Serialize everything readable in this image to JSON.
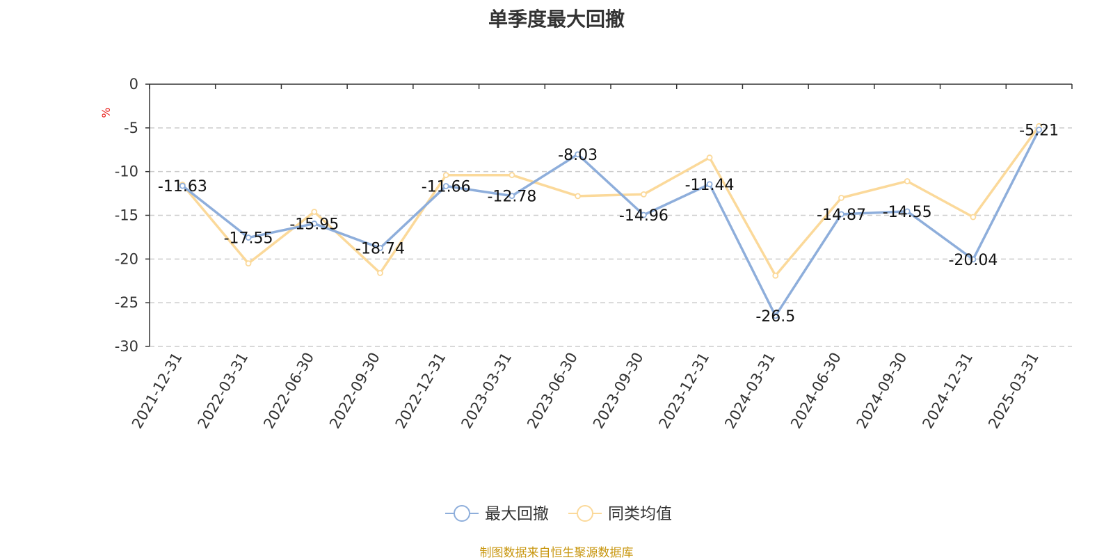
{
  "title": "单季度最大回撤",
  "source": "制图数据来自恒生聚源数据库",
  "chart_data": {
    "type": "line",
    "title": "单季度最大回撤",
    "ylabel": "%",
    "ylim": [
      -30,
      0
    ],
    "yticks": [
      0,
      -5,
      -10,
      -15,
      -20,
      -25,
      -30
    ],
    "grid": true,
    "legend_position": "bottom-center",
    "categories": [
      "2021-12-31",
      "2022-03-31",
      "2022-06-30",
      "2022-09-30",
      "2022-12-31",
      "2023-03-31",
      "2023-06-30",
      "2023-09-30",
      "2023-12-31",
      "2024-03-31",
      "2024-06-30",
      "2024-09-30",
      "2024-12-31",
      "2025-03-31"
    ],
    "series": [
      {
        "name": "最大回撤",
        "color": "#8eaedb",
        "values": [
          -11.63,
          -17.55,
          -15.95,
          -18.74,
          -11.66,
          -12.78,
          -8.03,
          -14.96,
          -11.44,
          -26.5,
          -14.87,
          -14.55,
          -20.04,
          -5.21
        ],
        "labels": [
          "-11.63",
          "-17.55",
          "-15.95",
          "-18.74",
          "-11.66",
          "-12.78",
          "-8.03",
          "-14.96",
          "-11.44",
          "-26.5",
          "-14.87",
          "-14.55",
          "-20.04",
          "-5.21"
        ]
      },
      {
        "name": "同类均值",
        "color": "#fbd99a",
        "values": [
          -11.5,
          -20.5,
          -14.6,
          -21.6,
          -10.4,
          -10.4,
          -12.8,
          -12.6,
          -8.4,
          -21.9,
          -13.0,
          -11.1,
          -15.2,
          -4.8
        ]
      }
    ]
  }
}
